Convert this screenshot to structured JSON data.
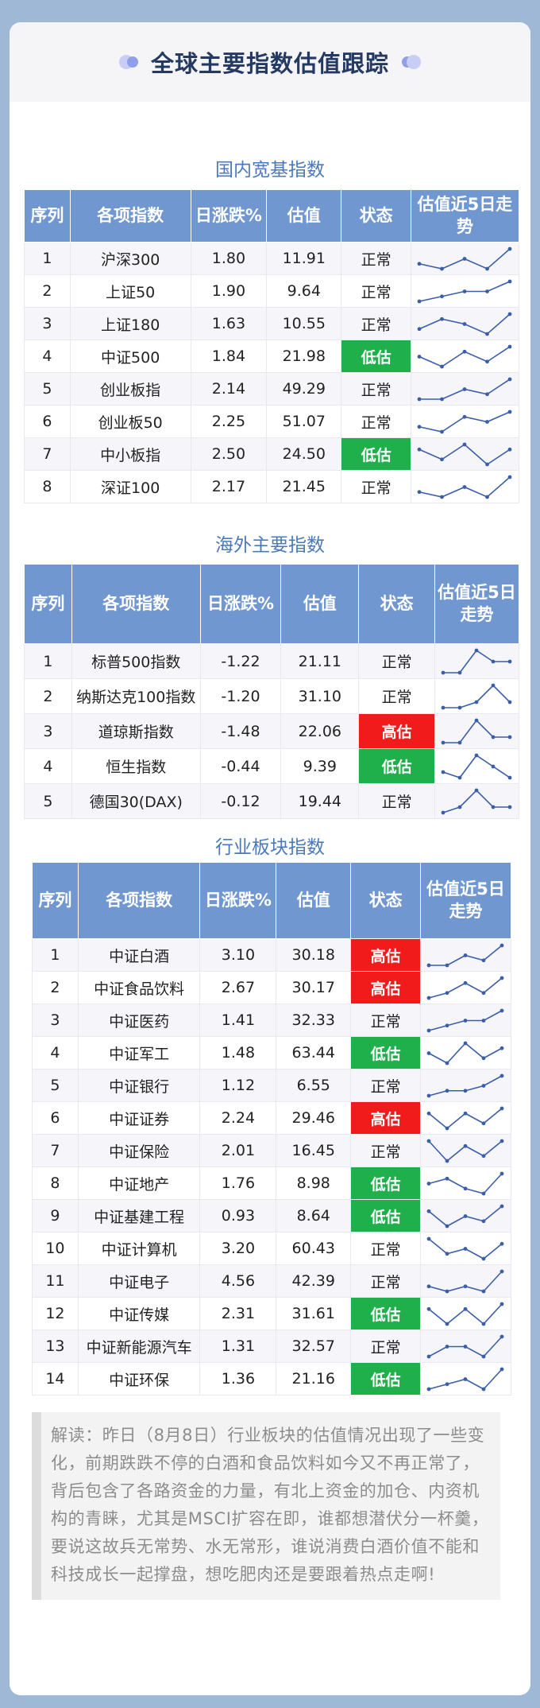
{
  "page_title": "全球主要指数估值跟踪",
  "sections": {
    "domestic": {
      "title": "国内宽基指数",
      "headers": [
        "序列",
        "各项指数",
        "日涨跌%",
        "估值",
        "状态",
        "估值近5日走势"
      ],
      "rows": [
        {
          "n": "1",
          "name": "沪深300",
          "chg": "1.80",
          "val": "11.91",
          "status": "正常",
          "trend": [
            2,
            1,
            3,
            1,
            5
          ]
        },
        {
          "n": "2",
          "name": "上证50",
          "chg": "1.90",
          "val": "9.64",
          "status": "正常",
          "trend": [
            1,
            2,
            3,
            3,
            5
          ]
        },
        {
          "n": "3",
          "name": "上证180",
          "chg": "1.63",
          "val": "10.55",
          "status": "正常",
          "trend": [
            2,
            4,
            3,
            1,
            5
          ]
        },
        {
          "n": "4",
          "name": "中证500",
          "chg": "1.84",
          "val": "21.98",
          "status": "低估",
          "trend": [
            3,
            1,
            4,
            2,
            5
          ]
        },
        {
          "n": "5",
          "name": "创业板指",
          "chg": "2.14",
          "val": "49.29",
          "status": "正常",
          "trend": [
            1,
            1,
            3,
            2,
            5
          ]
        },
        {
          "n": "6",
          "name": "创业板50",
          "chg": "2.25",
          "val": "51.07",
          "status": "正常",
          "trend": [
            2,
            1,
            4,
            3,
            5
          ]
        },
        {
          "n": "7",
          "name": "中小板指",
          "chg": "2.50",
          "val": "24.50",
          "status": "低估",
          "trend": [
            4,
            2,
            5,
            1,
            4
          ]
        },
        {
          "n": "8",
          "name": "深证100",
          "chg": "2.17",
          "val": "21.45",
          "status": "正常",
          "trend": [
            2,
            1,
            3,
            1,
            5
          ]
        }
      ]
    },
    "overseas": {
      "title": "海外主要指数",
      "headers": [
        "序列",
        "各项指数",
        "日涨跌%",
        "估值",
        "状态",
        "估值近5日走势"
      ],
      "rows": [
        {
          "n": "1",
          "name": "标普500指数",
          "chg": "-1.22",
          "val": "21.11",
          "status": "正常",
          "trend": [
            1,
            1,
            5,
            3,
            3
          ]
        },
        {
          "n": "2",
          "name": "纳斯达克100指数",
          "chg": "-1.20",
          "val": "31.10",
          "status": "正常",
          "trend": [
            1,
            1,
            2,
            5,
            2
          ]
        },
        {
          "n": "3",
          "name": "道琼斯指数",
          "chg": "-1.48",
          "val": "22.06",
          "status": "高估",
          "trend": [
            1,
            1,
            5,
            2,
            2
          ]
        },
        {
          "n": "4",
          "name": "恒生指数",
          "chg": "-0.44",
          "val": "9.39",
          "status": "低估",
          "trend": [
            2,
            1,
            5,
            3,
            1
          ]
        },
        {
          "n": "5",
          "name": "德国30(DAX)",
          "chg": "-0.12",
          "val": "19.44",
          "status": "正常",
          "trend": [
            1,
            2,
            5,
            2,
            2
          ]
        }
      ]
    },
    "industry": {
      "title": "行业板块指数",
      "headers": [
        "序列",
        "各项指数",
        "日涨跌%",
        "估值",
        "状态",
        "估值近5日走势"
      ],
      "rows": [
        {
          "n": "1",
          "name": "中证白酒",
          "chg": "3.10",
          "val": "30.18",
          "status": "高估",
          "trend": [
            1,
            1,
            3,
            2,
            5
          ]
        },
        {
          "n": "2",
          "name": "中证食品饮料",
          "chg": "2.67",
          "val": "30.17",
          "status": "高估",
          "trend": [
            1,
            2,
            4,
            2,
            5
          ]
        },
        {
          "n": "3",
          "name": "中证医药",
          "chg": "1.41",
          "val": "32.33",
          "status": "正常",
          "trend": [
            1,
            2,
            3,
            3,
            5
          ]
        },
        {
          "n": "4",
          "name": "中证军工",
          "chg": "1.48",
          "val": "63.44",
          "status": "低估",
          "trend": [
            3,
            1,
            5,
            2,
            4
          ]
        },
        {
          "n": "5",
          "name": "中证银行",
          "chg": "1.12",
          "val": "6.55",
          "status": "正常",
          "trend": [
            1,
            2,
            2,
            3,
            5
          ]
        },
        {
          "n": "6",
          "name": "中证证券",
          "chg": "2.24",
          "val": "29.46",
          "status": "高估",
          "trend": [
            4,
            1,
            4,
            2,
            5
          ]
        },
        {
          "n": "7",
          "name": "中证保险",
          "chg": "2.01",
          "val": "16.45",
          "status": "正常",
          "trend": [
            5,
            1,
            4,
            2,
            5
          ]
        },
        {
          "n": "8",
          "name": "中证地产",
          "chg": "1.76",
          "val": "8.98",
          "status": "低估",
          "trend": [
            3,
            4,
            2,
            1,
            5
          ]
        },
        {
          "n": "9",
          "name": "中证基建工程",
          "chg": "0.93",
          "val": "8.64",
          "status": "低估",
          "trend": [
            4,
            1,
            3,
            2,
            5
          ]
        },
        {
          "n": "10",
          "name": "中证计算机",
          "chg": "3.20",
          "val": "60.43",
          "status": "正常",
          "trend": [
            5,
            2,
            3,
            1,
            4
          ]
        },
        {
          "n": "11",
          "name": "中证电子",
          "chg": "4.56",
          "val": "42.39",
          "status": "正常",
          "trend": [
            2,
            1,
            2,
            1,
            5
          ]
        },
        {
          "n": "12",
          "name": "中证传媒",
          "chg": "2.31",
          "val": "31.61",
          "status": "低估",
          "trend": [
            4,
            1,
            4,
            1,
            5
          ]
        },
        {
          "n": "13",
          "name": "中证新能源汽车",
          "chg": "1.31",
          "val": "32.57",
          "status": "正常",
          "trend": [
            1,
            3,
            3,
            1,
            5
          ]
        },
        {
          "n": "14",
          "name": "中证环保",
          "chg": "1.36",
          "val": "21.16",
          "status": "低估",
          "trend": [
            1,
            2,
            3,
            1,
            5
          ]
        }
      ]
    }
  },
  "commentary": "解读：昨日（8月8日）行业板块的估值情况出现了一些变化，前期跌跌不停的白酒和食品饮料如今又不再正常了，背后包含了各路资金的力量，有北上资金的加仓、内资机构的青睐，尤其是MSCI扩容在即，谁都想潜伏分一杯羹，要说这故兵无常势、水无常形，谁说消费白酒价值不能和科技成长一起撑盘，想吃肥肉还是要跟着热点走啊!",
  "colors": {
    "header_bg": "#7197d0",
    "low": "#1fb04b",
    "high": "#f21b1b",
    "section_title": "#4a79bd",
    "spark": "#3b5ea8"
  }
}
